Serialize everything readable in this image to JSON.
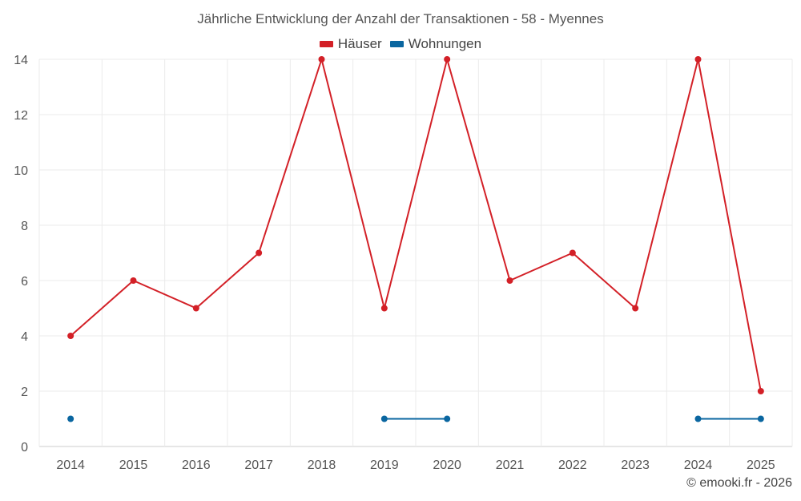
{
  "chart_data": {
    "type": "line",
    "title": "Jährliche Entwicklung der Anzahl der Transaktionen - 58 - Myennes",
    "categories": [
      "2014",
      "2015",
      "2016",
      "2017",
      "2018",
      "2019",
      "2020",
      "2021",
      "2022",
      "2023",
      "2024",
      "2025"
    ],
    "series": [
      {
        "name": "Häuser",
        "color": "#d32027",
        "values": [
          4,
          6,
          5,
          7,
          14,
          5,
          14,
          6,
          7,
          5,
          14,
          2
        ]
      },
      {
        "name": "Wohnungen",
        "color": "#0a66a0",
        "values": [
          1,
          null,
          null,
          null,
          null,
          1,
          1,
          null,
          null,
          null,
          1,
          1
        ]
      }
    ],
    "ylim": [
      0,
      14
    ],
    "yticks": [
      0,
      2,
      4,
      6,
      8,
      10,
      12,
      14
    ],
    "xlabel": "",
    "ylabel": "",
    "grid": true,
    "legend_position": "top-center"
  },
  "credit": "© emooki.fr - 2026"
}
